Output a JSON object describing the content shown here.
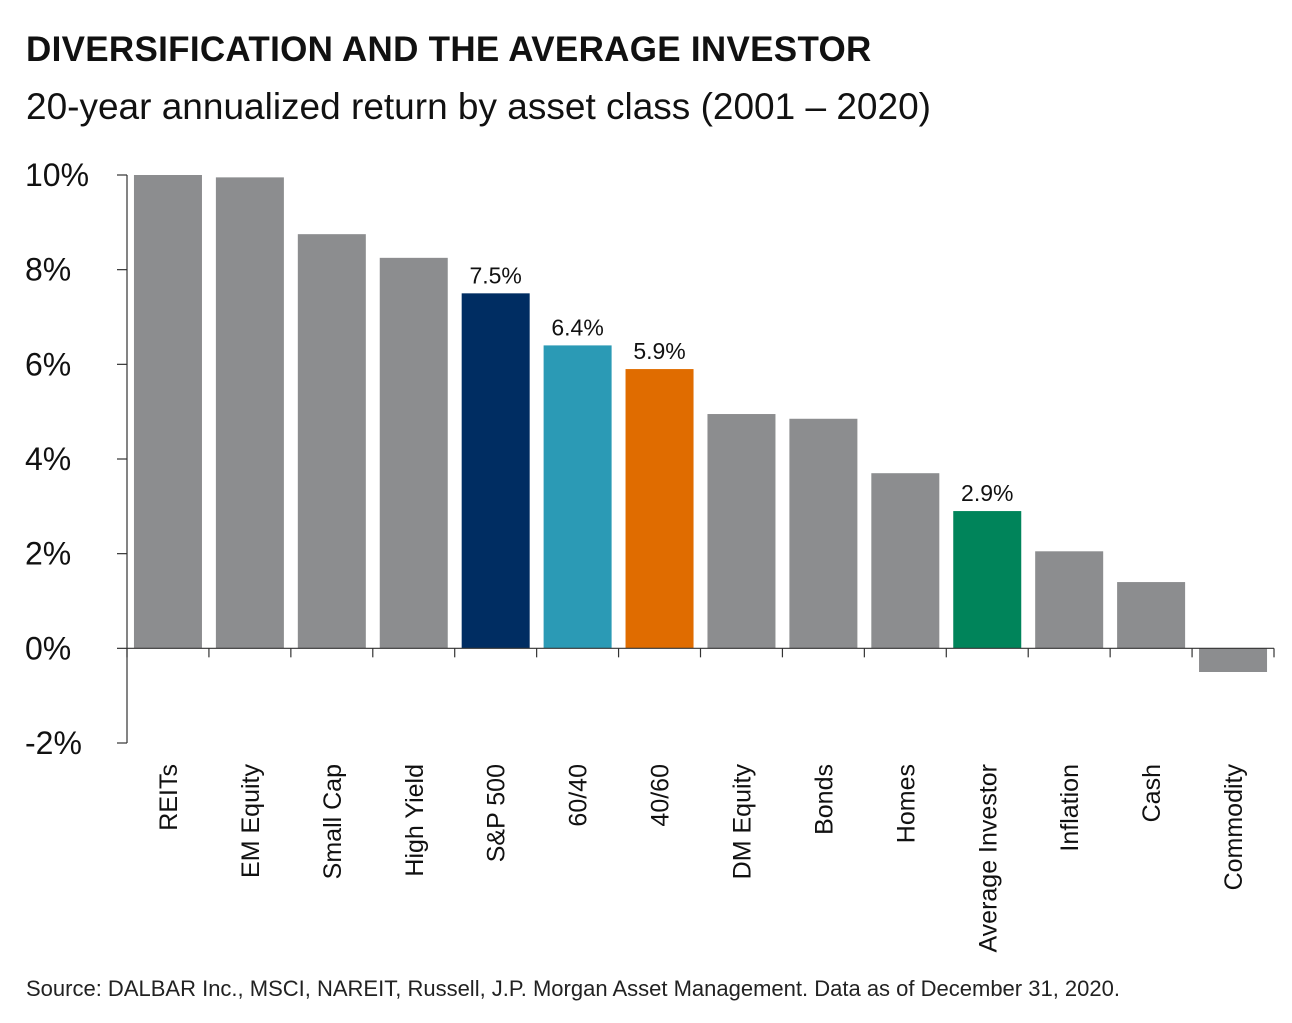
{
  "header": {
    "title": "DIVERSIFICATION AND THE AVERAGE INVESTOR",
    "subtitle": "20-year annualized return by asset class (2001 – 2020)"
  },
  "footer": {
    "source": "Source: DALBAR Inc., MSCI, NAREIT, Russell, J.P. Morgan Asset Management. Data as of December 31, 2020."
  },
  "chart_data": {
    "type": "bar",
    "title": "DIVERSIFICATION AND THE AVERAGE INVESTOR",
    "subtitle": "20-year annualized return by asset class (2001 – 2020)",
    "xlabel": "",
    "ylabel": "",
    "ylim": [
      -2,
      10
    ],
    "yticks": [
      -2,
      0,
      2,
      4,
      6,
      8,
      10
    ],
    "ytick_labels": [
      "-2%",
      "0%",
      "2%",
      "4%",
      "6%",
      "8%",
      "10%"
    ],
    "grid": false,
    "categories": [
      "REITs",
      "EM Equity",
      "Small Cap",
      "High Yield",
      "S&P 500",
      "60/40",
      "40/60",
      "DM Equity",
      "Bonds",
      "Homes",
      "Average Investor",
      "Inflation",
      "Cash",
      "Commodity"
    ],
    "values": [
      10.0,
      9.95,
      8.75,
      8.25,
      7.5,
      6.4,
      5.9,
      4.95,
      4.85,
      3.7,
      2.9,
      2.05,
      1.4,
      -0.5
    ],
    "data_labels": [
      "",
      "",
      "",
      "",
      "7.5%",
      "6.4%",
      "5.9%",
      "",
      "",
      "",
      "2.9%",
      "",
      "",
      ""
    ],
    "colors": [
      "#8c8d8f",
      "#8c8d8f",
      "#8c8d8f",
      "#8c8d8f",
      "#002d62",
      "#2b9ab5",
      "#e06c00",
      "#8c8d8f",
      "#8c8d8f",
      "#8c8d8f",
      "#00845a",
      "#8c8d8f",
      "#8c8d8f",
      "#8c8d8f"
    ]
  }
}
